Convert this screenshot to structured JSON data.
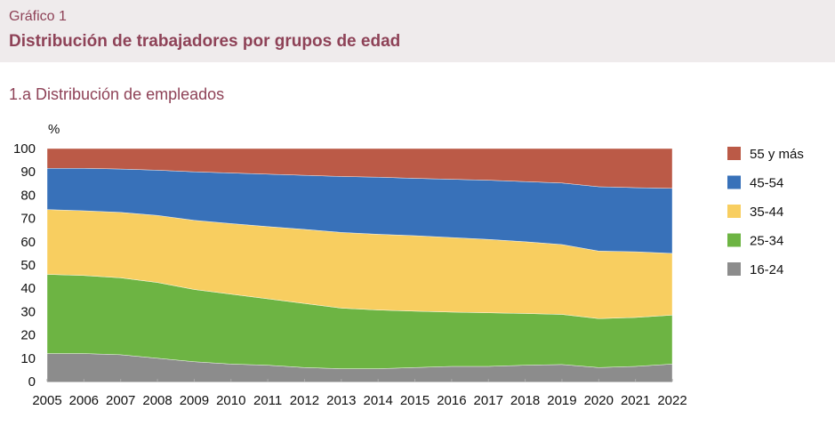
{
  "header": {
    "kicker": "Gráfico 1",
    "title": "Distribución de trabajadores por grupos de edad"
  },
  "chart_data": {
    "type": "area",
    "stacked": true,
    "title": "1.a  Distribución de empleados",
    "ylabel": "%",
    "ylim": [
      0,
      100
    ],
    "yticks": [
      0,
      10,
      20,
      30,
      40,
      50,
      60,
      70,
      80,
      90,
      100
    ],
    "legend_position": "right",
    "grid": false,
    "x": [
      2005,
      2006,
      2007,
      2008,
      2009,
      2010,
      2011,
      2012,
      2013,
      2014,
      2015,
      2016,
      2017,
      2018,
      2019,
      2020,
      2021,
      2022
    ],
    "series": [
      {
        "name": "16-24",
        "color": "#8c8c8c",
        "values": [
          12,
          12,
          11.5,
          10,
          8.5,
          7.5,
          7,
          6,
          5.5,
          5.5,
          6,
          6.5,
          6.5,
          7,
          7.3,
          6,
          6.5,
          7.5
        ]
      },
      {
        "name": "25-34",
        "color": "#6db443",
        "values": [
          34,
          33.5,
          33,
          32.5,
          31,
          30,
          28.5,
          27.5,
          26,
          25.2,
          24.2,
          23.3,
          23,
          22.2,
          21.5,
          21,
          21,
          21
        ]
      },
      {
        "name": "35-44",
        "color": "#f8ce60",
        "values": [
          27.8,
          27.8,
          28.1,
          28.8,
          29.7,
          30.3,
          31,
          31.8,
          32.5,
          32.5,
          32.4,
          32,
          31.5,
          30.8,
          30,
          29,
          28.2,
          26.5
        ]
      },
      {
        "name": "45-54",
        "color": "#3871b9",
        "values": [
          17.7,
          18.2,
          18.6,
          19.4,
          20.8,
          21.7,
          22.5,
          23.2,
          24,
          24.5,
          24.6,
          25,
          25.4,
          25.8,
          26.4,
          27.6,
          27.5,
          27.9
        ]
      },
      {
        "name": "55 y más",
        "color": "#bb5a47",
        "values": [
          8.5,
          8.5,
          8.8,
          9.3,
          10,
          10.5,
          11,
          11.5,
          12,
          12.3,
          12.8,
          13.2,
          13.6,
          14.2,
          14.8,
          16.4,
          16.8,
          17.1
        ]
      }
    ]
  }
}
